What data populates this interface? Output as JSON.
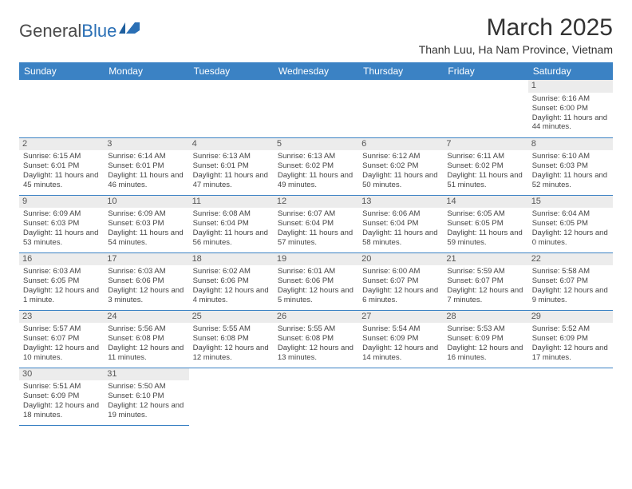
{
  "logo": {
    "text1": "General",
    "text2": "Blue",
    "flag_color": "#2a6fb5"
  },
  "title": "March 2025",
  "subtitle": "Thanh Luu, Ha Nam Province, Vietnam",
  "header_bg": "#3b82c4",
  "dayHeaders": [
    "Sunday",
    "Monday",
    "Tuesday",
    "Wednesday",
    "Thursday",
    "Friday",
    "Saturday"
  ],
  "weeks": [
    [
      null,
      null,
      null,
      null,
      null,
      null,
      {
        "n": "1",
        "sunrise": "Sunrise: 6:16 AM",
        "sunset": "Sunset: 6:00 PM",
        "daylight": "Daylight: 11 hours and 44 minutes."
      }
    ],
    [
      {
        "n": "2",
        "sunrise": "Sunrise: 6:15 AM",
        "sunset": "Sunset: 6:01 PM",
        "daylight": "Daylight: 11 hours and 45 minutes."
      },
      {
        "n": "3",
        "sunrise": "Sunrise: 6:14 AM",
        "sunset": "Sunset: 6:01 PM",
        "daylight": "Daylight: 11 hours and 46 minutes."
      },
      {
        "n": "4",
        "sunrise": "Sunrise: 6:13 AM",
        "sunset": "Sunset: 6:01 PM",
        "daylight": "Daylight: 11 hours and 47 minutes."
      },
      {
        "n": "5",
        "sunrise": "Sunrise: 6:13 AM",
        "sunset": "Sunset: 6:02 PM",
        "daylight": "Daylight: 11 hours and 49 minutes."
      },
      {
        "n": "6",
        "sunrise": "Sunrise: 6:12 AM",
        "sunset": "Sunset: 6:02 PM",
        "daylight": "Daylight: 11 hours and 50 minutes."
      },
      {
        "n": "7",
        "sunrise": "Sunrise: 6:11 AM",
        "sunset": "Sunset: 6:02 PM",
        "daylight": "Daylight: 11 hours and 51 minutes."
      },
      {
        "n": "8",
        "sunrise": "Sunrise: 6:10 AM",
        "sunset": "Sunset: 6:03 PM",
        "daylight": "Daylight: 11 hours and 52 minutes."
      }
    ],
    [
      {
        "n": "9",
        "sunrise": "Sunrise: 6:09 AM",
        "sunset": "Sunset: 6:03 PM",
        "daylight": "Daylight: 11 hours and 53 minutes."
      },
      {
        "n": "10",
        "sunrise": "Sunrise: 6:09 AM",
        "sunset": "Sunset: 6:03 PM",
        "daylight": "Daylight: 11 hours and 54 minutes."
      },
      {
        "n": "11",
        "sunrise": "Sunrise: 6:08 AM",
        "sunset": "Sunset: 6:04 PM",
        "daylight": "Daylight: 11 hours and 56 minutes."
      },
      {
        "n": "12",
        "sunrise": "Sunrise: 6:07 AM",
        "sunset": "Sunset: 6:04 PM",
        "daylight": "Daylight: 11 hours and 57 minutes."
      },
      {
        "n": "13",
        "sunrise": "Sunrise: 6:06 AM",
        "sunset": "Sunset: 6:04 PM",
        "daylight": "Daylight: 11 hours and 58 minutes."
      },
      {
        "n": "14",
        "sunrise": "Sunrise: 6:05 AM",
        "sunset": "Sunset: 6:05 PM",
        "daylight": "Daylight: 11 hours and 59 minutes."
      },
      {
        "n": "15",
        "sunrise": "Sunrise: 6:04 AM",
        "sunset": "Sunset: 6:05 PM",
        "daylight": "Daylight: 12 hours and 0 minutes."
      }
    ],
    [
      {
        "n": "16",
        "sunrise": "Sunrise: 6:03 AM",
        "sunset": "Sunset: 6:05 PM",
        "daylight": "Daylight: 12 hours and 1 minute."
      },
      {
        "n": "17",
        "sunrise": "Sunrise: 6:03 AM",
        "sunset": "Sunset: 6:06 PM",
        "daylight": "Daylight: 12 hours and 3 minutes."
      },
      {
        "n": "18",
        "sunrise": "Sunrise: 6:02 AM",
        "sunset": "Sunset: 6:06 PM",
        "daylight": "Daylight: 12 hours and 4 minutes."
      },
      {
        "n": "19",
        "sunrise": "Sunrise: 6:01 AM",
        "sunset": "Sunset: 6:06 PM",
        "daylight": "Daylight: 12 hours and 5 minutes."
      },
      {
        "n": "20",
        "sunrise": "Sunrise: 6:00 AM",
        "sunset": "Sunset: 6:07 PM",
        "daylight": "Daylight: 12 hours and 6 minutes."
      },
      {
        "n": "21",
        "sunrise": "Sunrise: 5:59 AM",
        "sunset": "Sunset: 6:07 PM",
        "daylight": "Daylight: 12 hours and 7 minutes."
      },
      {
        "n": "22",
        "sunrise": "Sunrise: 5:58 AM",
        "sunset": "Sunset: 6:07 PM",
        "daylight": "Daylight: 12 hours and 9 minutes."
      }
    ],
    [
      {
        "n": "23",
        "sunrise": "Sunrise: 5:57 AM",
        "sunset": "Sunset: 6:07 PM",
        "daylight": "Daylight: 12 hours and 10 minutes."
      },
      {
        "n": "24",
        "sunrise": "Sunrise: 5:56 AM",
        "sunset": "Sunset: 6:08 PM",
        "daylight": "Daylight: 12 hours and 11 minutes."
      },
      {
        "n": "25",
        "sunrise": "Sunrise: 5:55 AM",
        "sunset": "Sunset: 6:08 PM",
        "daylight": "Daylight: 12 hours and 12 minutes."
      },
      {
        "n": "26",
        "sunrise": "Sunrise: 5:55 AM",
        "sunset": "Sunset: 6:08 PM",
        "daylight": "Daylight: 12 hours and 13 minutes."
      },
      {
        "n": "27",
        "sunrise": "Sunrise: 5:54 AM",
        "sunset": "Sunset: 6:09 PM",
        "daylight": "Daylight: 12 hours and 14 minutes."
      },
      {
        "n": "28",
        "sunrise": "Sunrise: 5:53 AM",
        "sunset": "Sunset: 6:09 PM",
        "daylight": "Daylight: 12 hours and 16 minutes."
      },
      {
        "n": "29",
        "sunrise": "Sunrise: 5:52 AM",
        "sunset": "Sunset: 6:09 PM",
        "daylight": "Daylight: 12 hours and 17 minutes."
      }
    ],
    [
      {
        "n": "30",
        "sunrise": "Sunrise: 5:51 AM",
        "sunset": "Sunset: 6:09 PM",
        "daylight": "Daylight: 12 hours and 18 minutes."
      },
      {
        "n": "31",
        "sunrise": "Sunrise: 5:50 AM",
        "sunset": "Sunset: 6:10 PM",
        "daylight": "Daylight: 12 hours and 19 minutes."
      },
      null,
      null,
      null,
      null,
      null
    ]
  ]
}
